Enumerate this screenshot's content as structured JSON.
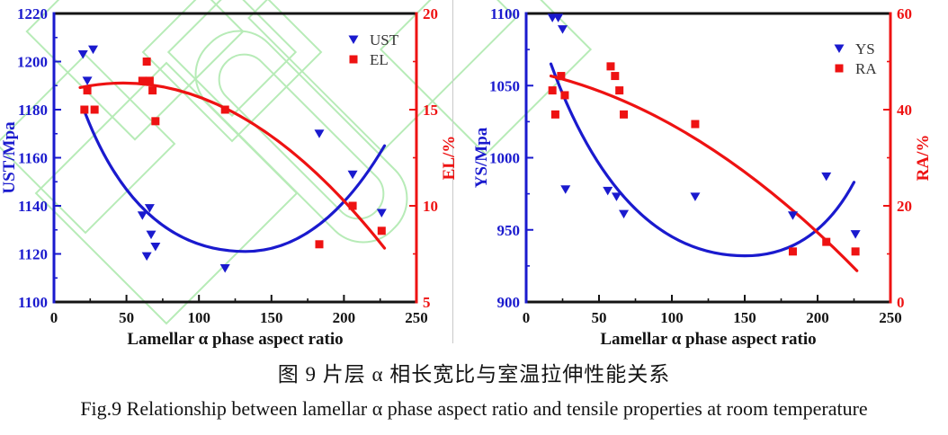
{
  "page": {
    "background": "#ffffff",
    "separator_color": "#c9c9c9",
    "watermark_color": "#a6e7a6",
    "axis_black": "#141414",
    "blue": "#1a1ace",
    "red": "#ee1212",
    "legend_text_color": "#333333"
  },
  "caption": {
    "zh": "图 9 片层 α 相长宽比与室温拉伸性能关系",
    "en": "Fig.9 Relationship between lamellar α phase aspect ratio and tensile properties at room temperature"
  },
  "chart_data": [
    {
      "type": "scatter",
      "title": "",
      "xlabel": "Lamellar α phase aspect ratio",
      "x_axis": {
        "min": 0,
        "max": 250,
        "major": 50,
        "minor": 25,
        "ticks": [
          0,
          50,
          100,
          150,
          200,
          250
        ]
      },
      "left_axis": {
        "label": "UST/Mpa",
        "min": 1100,
        "max": 1220,
        "major": 20,
        "minor": 10,
        "color": "#1a1ace",
        "ticks": [
          1100,
          1120,
          1140,
          1160,
          1180,
          1200,
          1220
        ]
      },
      "right_axis": {
        "label": "EL/%",
        "min": 5,
        "max": 20,
        "major": 5,
        "minor": 2.5,
        "color": "#ee1212",
        "ticks": [
          5,
          10,
          15,
          20
        ]
      },
      "legend": [
        "UST",
        "EL"
      ],
      "legend_position": "top-right",
      "grid": false,
      "series": [
        {
          "name": "UST",
          "axis": "left",
          "marker": "triangle-down",
          "color": "#1a1ace",
          "points": [
            [
              20,
              1203
            ],
            [
              27,
              1205
            ],
            [
              23,
              1192
            ],
            [
              61,
              1136
            ],
            [
              66,
              1139
            ],
            [
              67,
              1128
            ],
            [
              70,
              1123
            ],
            [
              64,
              1119
            ],
            [
              118,
              1114
            ],
            [
              183,
              1170
            ],
            [
              206,
              1153
            ],
            [
              226,
              1137
            ]
          ]
        },
        {
          "name": "EL",
          "axis": "right",
          "marker": "square",
          "color": "#ee1212",
          "points": [
            [
              21,
              15
            ],
            [
              28,
              15
            ],
            [
              23,
              16
            ],
            [
              64,
              17.5
            ],
            [
              61,
              16.5
            ],
            [
              66,
              16.5
            ],
            [
              68,
              16
            ],
            [
              70,
              14.4
            ],
            [
              118,
              15
            ],
            [
              183,
              8
            ],
            [
              206,
              10
            ],
            [
              226,
              8.7
            ]
          ]
        }
      ],
      "trends": [
        {
          "series": "UST",
          "axis": "left",
          "color": "#1a1ace",
          "quad_path": [
            [
              20,
              1181
            ],
            [
              57,
              1121
            ],
            [
              132,
              1121
            ],
            [
              185,
              1121
            ],
            [
              228,
              1165
            ]
          ]
        },
        {
          "series": "EL",
          "axis": "right",
          "color": "#ee1212",
          "quad_path": [
            [
              18,
              16.15
            ],
            [
              123,
              17.8
            ],
            [
              228,
              7.8
            ]
          ]
        }
      ]
    },
    {
      "type": "scatter",
      "title": "",
      "xlabel": "Lamellar α phase aspect ratio",
      "x_axis": {
        "min": 0,
        "max": 250,
        "major": 50,
        "minor": 25,
        "ticks": [
          0,
          50,
          100,
          150,
          200,
          250
        ]
      },
      "left_axis": {
        "label": "YS/Mpa",
        "min": 900,
        "max": 1100,
        "major": 50,
        "minor": 25,
        "color": "#1a1ace",
        "ticks": [
          900,
          950,
          1000,
          1050,
          1100
        ]
      },
      "right_axis": {
        "label": "RA/%",
        "min": 0,
        "max": 60,
        "major": 20,
        "minor": 10,
        "color": "#ee1212",
        "ticks": [
          0,
          20,
          40,
          60
        ]
      },
      "legend": [
        "YS",
        "RA"
      ],
      "legend_position": "top-right",
      "grid": false,
      "series": [
        {
          "name": "YS",
          "axis": "left",
          "marker": "triangle-down",
          "color": "#1a1ace",
          "points": [
            [
              18,
              1097
            ],
            [
              22,
              1097
            ],
            [
              25,
              1089
            ],
            [
              27,
              978
            ],
            [
              56,
              977
            ],
            [
              62,
              973
            ],
            [
              67,
              961
            ],
            [
              116,
              973
            ],
            [
              183,
              960
            ],
            [
              206,
              987
            ],
            [
              226,
              947
            ]
          ]
        },
        {
          "name": "RA",
          "axis": "right",
          "marker": "square",
          "color": "#ee1212",
          "points": [
            [
              18,
              44
            ],
            [
              24,
              47
            ],
            [
              26.5,
              43
            ],
            [
              20,
              39
            ],
            [
              58,
              49
            ],
            [
              61,
              47
            ],
            [
              64,
              44
            ],
            [
              67,
              39
            ],
            [
              116,
              37
            ],
            [
              183,
              10.5
            ],
            [
              206,
              12.5
            ],
            [
              226,
              10.5
            ]
          ]
        }
      ],
      "trends": [
        {
          "series": "YS",
          "axis": "left",
          "color": "#1a1ace",
          "quad_path": [
            [
              17,
              1065
            ],
            [
              65,
              932
            ],
            [
              150,
              932
            ],
            [
              198,
              932
            ],
            [
              225,
              983
            ]
          ]
        },
        {
          "series": "RA",
          "axis": "right",
          "color": "#ee1212",
          "quad_path": [
            [
              17,
              47
            ],
            [
              122,
              39
            ],
            [
              227,
              6.5
            ]
          ]
        }
      ]
    }
  ]
}
